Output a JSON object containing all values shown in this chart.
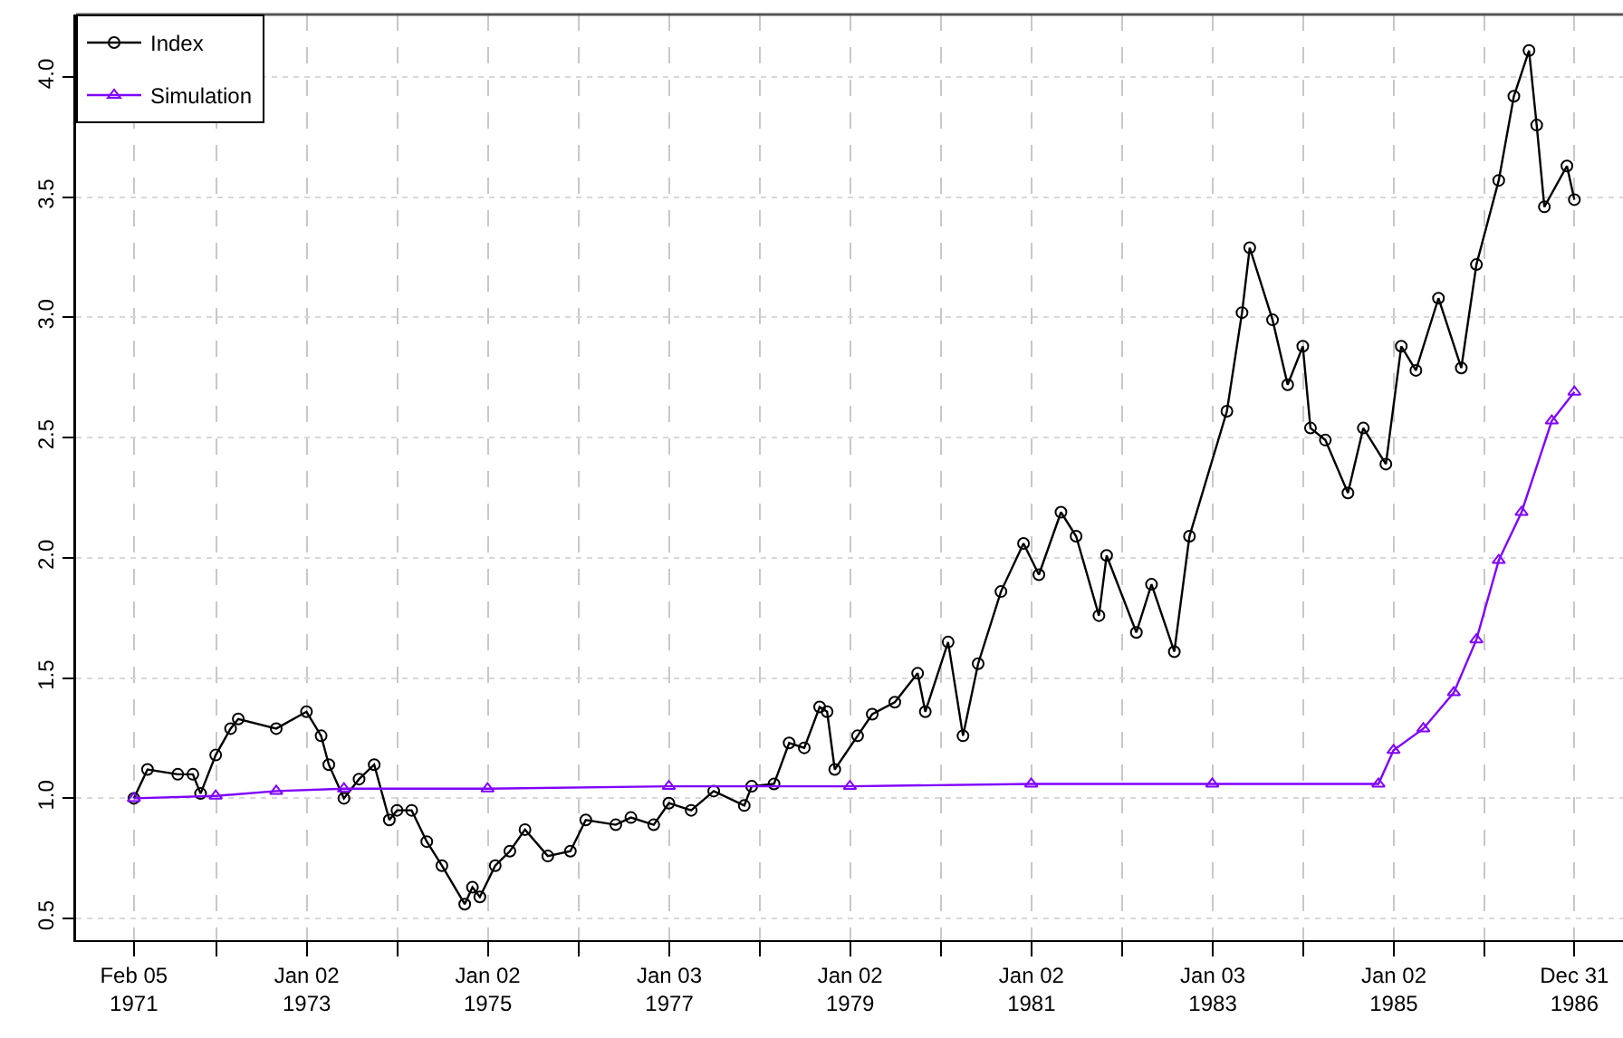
{
  "chart_data": {
    "type": "line",
    "legend": "top left",
    "grid": true,
    "line_style": "solid",
    "xlim": [
      "1970-06-17",
      "1987-07-15"
    ],
    "ylim": [
      0.41,
      4.26
    ],
    "yticks": [
      0.5,
      {
        "value": 1,
        "label": "1.0"
      },
      1.5,
      {
        "value": 2,
        "label": "2.0"
      },
      2.5,
      {
        "value": 3,
        "label": "3.0"
      },
      3.5,
      {
        "value": 4,
        "label": "4.0"
      }
    ],
    "xticks": [
      {
        "value": "1971-02-05",
        "label": "Feb 05\n1971"
      },
      {
        "value": "1972-01-03",
        "label": null
      },
      {
        "value": "1973-01-02",
        "label": "Jan 02\n1973"
      },
      {
        "value": "1974-01-02",
        "label": null
      },
      {
        "value": "1975-01-02",
        "label": "Jan 02\n1975"
      },
      {
        "value": "1976-01-02",
        "label": null
      },
      {
        "value": "1977-01-03",
        "label": "Jan 03\n1977"
      },
      {
        "value": "1978-01-03",
        "label": null
      },
      {
        "value": "1979-01-02",
        "label": "Jan 02\n1979"
      },
      {
        "value": "1980-01-02",
        "label": null
      },
      {
        "value": "1981-01-02",
        "label": "Jan 02\n1981"
      },
      {
        "value": "1982-01-04",
        "label": null
      },
      {
        "value": "1983-01-03",
        "label": "Jan 03\n1983"
      },
      {
        "value": "1984-01-03",
        "label": null
      },
      {
        "value": "1985-01-02",
        "label": "Jan 02\n1985"
      },
      {
        "value": "1986-01-02",
        "label": null
      },
      {
        "value": "1986-12-31",
        "label": "Dec 31\n1986"
      }
    ],
    "series": [
      {
        "name": "Index",
        "color": "#000000",
        "marker": "circle",
        "x": [
          "1971-02-05",
          "1971-04",
          "1971-08",
          "1971-10",
          "1971-11",
          "1972-01",
          "1972-03",
          "1972-04",
          "1972-09",
          "1973-01",
          "1973-03",
          "1973-04",
          "1973-06",
          "1973-08",
          "1973-10",
          "1973-12",
          "1974-01",
          "1974-03",
          "1974-05",
          "1974-07",
          "1974-10",
          "1974-11",
          "1974-12",
          "1975-02",
          "1975-04",
          "1975-06",
          "1975-09",
          "1975-12",
          "1976-02",
          "1976-06",
          "1976-08",
          "1976-11",
          "1977-01",
          "1977-04",
          "1977-07",
          "1977-11",
          "1977-12",
          "1978-03",
          "1978-05",
          "1978-07",
          "1978-09",
          "1978-10",
          "1978-11",
          "1979-02",
          "1979-04",
          "1979-07",
          "1979-10",
          "1979-11",
          "1980-02",
          "1980-04",
          "1980-06",
          "1980-09",
          "1980-12",
          "1981-02",
          "1981-05",
          "1981-07",
          "1981-10",
          "1981-11",
          "1982-03",
          "1982-05",
          "1982-08",
          "1982-10",
          "1983-03",
          "1983-05",
          "1983-06",
          "1983-09",
          "1983-11",
          "1984-01",
          "1984-02",
          "1984-04",
          "1984-07",
          "1984-09",
          "1984-12",
          "1985-02",
          "1985-04",
          "1985-07",
          "1985-10",
          "1985-12",
          "1986-03",
          "1986-05",
          "1986-07",
          "1986-08",
          "1986-09",
          "1986-12-01",
          "1986-12-31"
        ],
        "values": [
          1.0,
          1.12,
          1.1,
          1.1,
          1.02,
          1.18,
          1.29,
          1.33,
          1.29,
          1.36,
          1.26,
          1.14,
          1.0,
          1.08,
          1.14,
          0.91,
          0.95,
          0.95,
          0.82,
          0.72,
          0.56,
          0.63,
          0.59,
          0.72,
          0.78,
          0.87,
          0.76,
          0.78,
          0.91,
          0.89,
          0.92,
          0.89,
          0.98,
          0.95,
          1.03,
          0.97,
          1.05,
          1.06,
          1.23,
          1.21,
          1.38,
          1.36,
          1.12,
          1.26,
          1.35,
          1.4,
          1.52,
          1.36,
          1.65,
          1.26,
          1.56,
          1.86,
          2.06,
          1.93,
          2.19,
          2.09,
          1.76,
          2.01,
          1.69,
          1.89,
          1.61,
          2.09,
          2.61,
          3.02,
          3.29,
          2.99,
          2.72,
          2.88,
          2.54,
          2.49,
          2.27,
          2.54,
          2.39,
          2.88,
          2.78,
          3.08,
          2.79,
          3.22,
          3.57,
          3.92,
          4.11,
          3.8,
          3.46,
          3.63,
          3.49
        ]
      },
      {
        "name": "Simulation",
        "color": "#7f00ff",
        "marker": "triangle",
        "x": [
          "1971-02-05",
          "1972-01",
          "1972-09",
          "1973-06",
          "1975-01",
          "1977-01",
          "1979-01",
          "1981-01",
          "1983-01",
          "1984-11",
          "1985-01",
          "1985-05",
          "1985-09",
          "1985-12",
          "1986-03",
          "1986-06",
          "1986-10",
          "1986-12-31"
        ],
        "values": [
          1.0,
          1.01,
          1.03,
          1.04,
          1.04,
          1.05,
          1.05,
          1.06,
          1.06,
          1.06,
          1.2,
          1.29,
          1.44,
          1.66,
          1.99,
          2.19,
          2.57,
          2.69
        ]
      }
    ]
  }
}
